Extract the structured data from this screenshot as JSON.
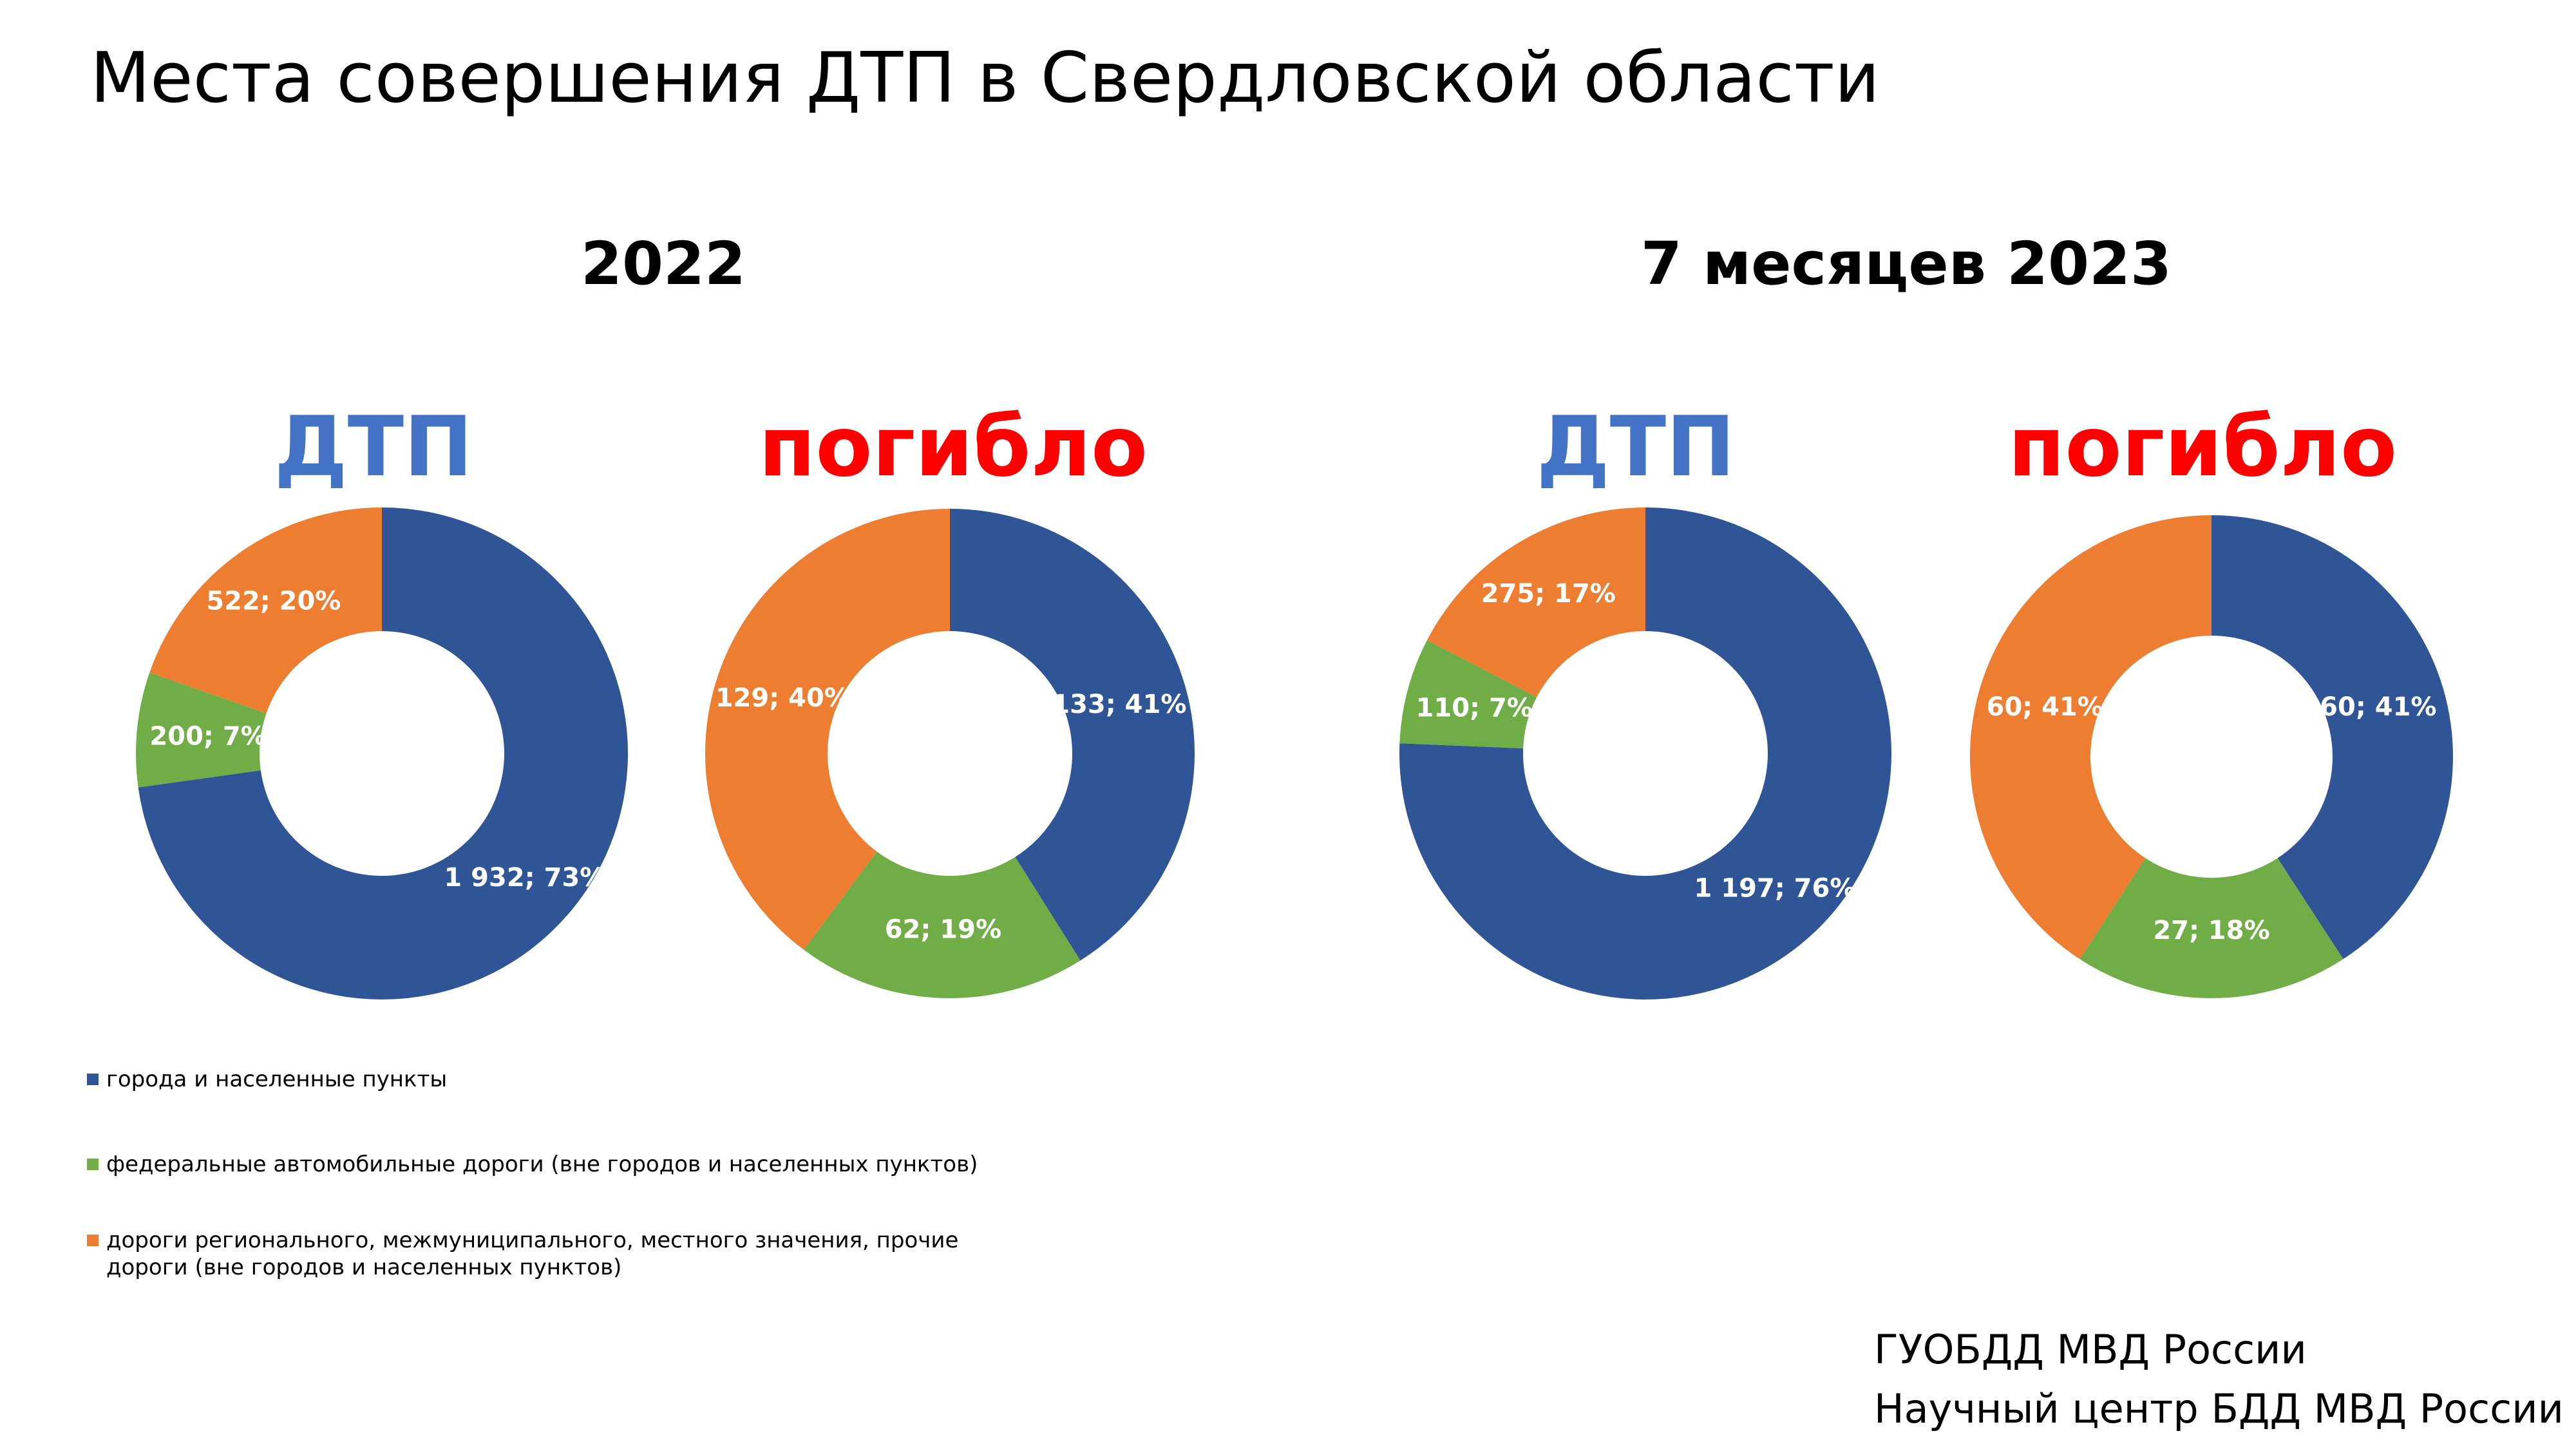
{
  "title": "Места совершения ДТП в Свердловской области",
  "year_labels": [
    "2022",
    "7 месяцев 2023"
  ],
  "colors": {
    "cities": "#2F5597",
    "federal": "#70AD47",
    "regional": "#ED7D31",
    "dtp_title": "#4472C4",
    "deaths_title": "#FF0000"
  },
  "legend": {
    "items": [
      {
        "label": "города и населенные пункты",
        "color": "#2F5597"
      },
      {
        "label": "федеральные автомобильные дороги (вне городов и населенных пунктов)",
        "color": "#70AD47"
      },
      {
        "label": "дороги регионального, межмуниципального, местного значения, прочие дороги (вне городов и населенных пунктов)",
        "color": "#ED7D31"
      }
    ]
  },
  "chart_data": [
    {
      "type": "pie",
      "subtype": "donut",
      "period": "2022",
      "title": "ДТП",
      "title_color": "#4472C4",
      "categories": [
        "города и населенные пункты",
        "федеральные автомобильные дороги (вне городов и населенных пунктов)",
        "дороги регионального, межмуниципального, местного значения, прочие дороги (вне городов и населенных пунктов)"
      ],
      "values": [
        1932,
        200,
        522
      ],
      "percents": [
        73,
        7,
        20
      ],
      "labels": [
        "1 932; 73%",
        "200; 7%",
        "522; 20%"
      ],
      "colors": [
        "#2F5597",
        "#70AD47",
        "#ED7D31"
      ]
    },
    {
      "type": "pie",
      "subtype": "donut",
      "period": "2022",
      "title": "погибло",
      "title_color": "#FF0000",
      "categories": [
        "города и населенные пункты",
        "федеральные автомобильные дороги (вне городов и населенных пунктов)",
        "дороги регионального, межмуниципального, местного значения, прочие дороги (вне городов и населенных пунктов)"
      ],
      "values": [
        133,
        62,
        129
      ],
      "percents": [
        41,
        19,
        40
      ],
      "labels": [
        "133; 41%",
        "62; 19%",
        "129; 40%"
      ],
      "colors": [
        "#2F5597",
        "#70AD47",
        "#ED7D31"
      ]
    },
    {
      "type": "pie",
      "subtype": "donut",
      "period": "7 месяцев 2023",
      "title": "ДТП",
      "title_color": "#4472C4",
      "categories": [
        "города и населенные пункты",
        "федеральные автомобильные дороги (вне городов и населенных пунктов)",
        "дороги регионального, межмуниципального, местного значения, прочие дороги (вне городов и населенных пунктов)"
      ],
      "values": [
        1197,
        110,
        275
      ],
      "percents": [
        76,
        7,
        17
      ],
      "labels": [
        "1 197; 76%",
        "110; 7%",
        "275; 17%"
      ],
      "colors": [
        "#2F5597",
        "#70AD47",
        "#ED7D31"
      ]
    },
    {
      "type": "pie",
      "subtype": "donut",
      "period": "7 месяцев 2023",
      "title": "погибло",
      "title_color": "#FF0000",
      "categories": [
        "города и населенные пункты",
        "федеральные автомобильные дороги (вне городов и населенных пунктов)",
        "дороги регионального, межмуниципального, местного значения, прочие дороги (вне городов и населенных пунктов)"
      ],
      "values": [
        60,
        27,
        60
      ],
      "percents": [
        41,
        18,
        41
      ],
      "labels": [
        "60; 41%",
        "27; 18%",
        "60; 41%"
      ],
      "colors": [
        "#2F5597",
        "#70AD47",
        "#ED7D31"
      ]
    }
  ],
  "source": {
    "line1": "ГУОБДД МВД России",
    "line2": "Научный центр БДД МВД России"
  }
}
